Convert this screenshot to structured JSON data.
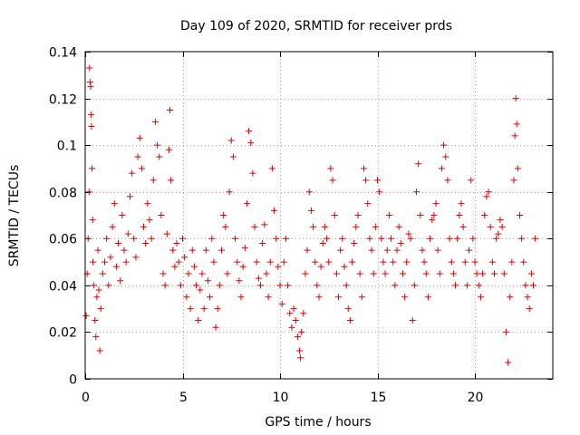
{
  "chart_data": {
    "type": "scatter",
    "title": "Day 109 of 2020, SRMTID for receiver prds",
    "xlabel": "GPS time / hours",
    "ylabel": "SRMTID / TECUs",
    "xlim": [
      0,
      24
    ],
    "ylim": [
      0,
      0.14
    ],
    "xticks": [
      0,
      5,
      10,
      15,
      20
    ],
    "xtick_labels": [
      "0",
      "5",
      "10",
      "15",
      "20"
    ],
    "yticks": [
      0,
      0.02,
      0.04,
      0.06,
      0.08,
      0.1,
      0.12,
      0.14
    ],
    "ytick_labels": [
      "0",
      "0.02",
      "0.04",
      "0.06",
      "0.08",
      "0.1",
      "0.12",
      "0.14"
    ],
    "grid": true,
    "marker": "+",
    "color": "#e00000",
    "series": [
      {
        "name": "SRMTID",
        "points": [
          [
            0.05,
            0.027
          ],
          [
            0.1,
            0.045
          ],
          [
            0.15,
            0.06
          ],
          [
            0.2,
            0.08
          ],
          [
            0.22,
            0.133
          ],
          [
            0.25,
            0.127
          ],
          [
            0.28,
            0.125
          ],
          [
            0.3,
            0.113
          ],
          [
            0.32,
            0.108
          ],
          [
            0.35,
            0.09
          ],
          [
            0.38,
            0.068
          ],
          [
            0.4,
            0.05
          ],
          [
            0.45,
            0.04
          ],
          [
            0.5,
            0.025
          ],
          [
            0.55,
            0.018
          ],
          [
            0.6,
            0.035
          ],
          [
            0.65,
            0.055
          ],
          [
            0.7,
            0.038
          ],
          [
            0.75,
            0.012
          ],
          [
            0.8,
            0.03
          ],
          [
            0.9,
            0.045
          ],
          [
            1.0,
            0.05
          ],
          [
            1.1,
            0.06
          ],
          [
            1.2,
            0.04
          ],
          [
            1.3,
            0.052
          ],
          [
            1.4,
            0.065
          ],
          [
            1.5,
            0.075
          ],
          [
            1.6,
            0.048
          ],
          [
            1.7,
            0.058
          ],
          [
            1.8,
            0.042
          ],
          [
            1.9,
            0.07
          ],
          [
            2.0,
            0.055
          ],
          [
            2.1,
            0.05
          ],
          [
            2.2,
            0.062
          ],
          [
            2.3,
            0.078
          ],
          [
            2.4,
            0.088
          ],
          [
            2.5,
            0.06
          ],
          [
            2.6,
            0.052
          ],
          [
            2.7,
            0.095
          ],
          [
            2.8,
            0.103
          ],
          [
            2.9,
            0.09
          ],
          [
            3.0,
            0.065
          ],
          [
            3.1,
            0.058
          ],
          [
            3.2,
            0.075
          ],
          [
            3.3,
            0.068
          ],
          [
            3.4,
            0.06
          ],
          [
            3.5,
            0.085
          ],
          [
            3.6,
            0.11
          ],
          [
            3.7,
            0.1
          ],
          [
            3.8,
            0.095
          ],
          [
            3.9,
            0.07
          ],
          [
            4.0,
            0.045
          ],
          [
            4.1,
            0.04
          ],
          [
            4.2,
            0.062
          ],
          [
            4.3,
            0.098
          ],
          [
            4.35,
            0.115
          ],
          [
            4.4,
            0.085
          ],
          [
            4.5,
            0.055
          ],
          [
            4.6,
            0.048
          ],
          [
            4.7,
            0.058
          ],
          [
            4.8,
            0.05
          ],
          [
            4.9,
            0.04
          ],
          [
            5.0,
            0.06
          ],
          [
            5.1,
            0.052
          ],
          [
            5.2,
            0.035
          ],
          [
            5.3,
            0.045
          ],
          [
            5.4,
            0.03
          ],
          [
            5.5,
            0.055
          ],
          [
            5.6,
            0.048
          ],
          [
            5.7,
            0.04
          ],
          [
            5.8,
            0.025
          ],
          [
            5.9,
            0.038
          ],
          [
            6.0,
            0.045
          ],
          [
            6.1,
            0.03
          ],
          [
            6.2,
            0.055
          ],
          [
            6.3,
            0.042
          ],
          [
            6.4,
            0.035
          ],
          [
            6.5,
            0.06
          ],
          [
            6.6,
            0.05
          ],
          [
            6.7,
            0.022
          ],
          [
            6.8,
            0.03
          ],
          [
            6.9,
            0.04
          ],
          [
            7.0,
            0.055
          ],
          [
            7.1,
            0.07
          ],
          [
            7.2,
            0.065
          ],
          [
            7.3,
            0.045
          ],
          [
            7.4,
            0.08
          ],
          [
            7.5,
            0.102
          ],
          [
            7.6,
            0.095
          ],
          [
            7.7,
            0.06
          ],
          [
            7.8,
            0.05
          ],
          [
            7.9,
            0.042
          ],
          [
            8.0,
            0.035
          ],
          [
            8.1,
            0.048
          ],
          [
            8.2,
            0.056
          ],
          [
            8.3,
            0.075
          ],
          [
            8.4,
            0.106
          ],
          [
            8.5,
            0.101
          ],
          [
            8.6,
            0.088
          ],
          [
            8.7,
            0.065
          ],
          [
            8.8,
            0.05
          ],
          [
            8.9,
            0.043
          ],
          [
            9.0,
            0.04
          ],
          [
            9.1,
            0.058
          ],
          [
            9.2,
            0.066
          ],
          [
            9.3,
            0.045
          ],
          [
            9.4,
            0.035
          ],
          [
            9.5,
            0.05
          ],
          [
            9.6,
            0.09
          ],
          [
            9.7,
            0.072
          ],
          [
            9.8,
            0.06
          ],
          [
            9.9,
            0.048
          ],
          [
            10.0,
            0.04
          ],
          [
            10.1,
            0.032
          ],
          [
            10.2,
            0.05
          ],
          [
            10.3,
            0.06
          ],
          [
            10.4,
            0.04
          ],
          [
            10.5,
            0.028
          ],
          [
            10.6,
            0.022
          ],
          [
            10.7,
            0.03
          ],
          [
            10.8,
            0.025
          ],
          [
            10.9,
            0.018
          ],
          [
            11.0,
            0.012
          ],
          [
            11.05,
            0.009
          ],
          [
            11.1,
            0.02
          ],
          [
            11.2,
            0.028
          ],
          [
            11.3,
            0.045
          ],
          [
            11.4,
            0.055
          ],
          [
            11.5,
            0.08
          ],
          [
            11.6,
            0.072
          ],
          [
            11.7,
            0.065
          ],
          [
            11.8,
            0.05
          ],
          [
            11.9,
            0.04
          ],
          [
            12.0,
            0.035
          ],
          [
            12.1,
            0.048
          ],
          [
            12.2,
            0.058
          ],
          [
            12.3,
            0.065
          ],
          [
            12.4,
            0.06
          ],
          [
            12.5,
            0.05
          ],
          [
            12.6,
            0.09
          ],
          [
            12.7,
            0.085
          ],
          [
            12.8,
            0.07
          ],
          [
            12.9,
            0.045
          ],
          [
            13.0,
            0.035
          ],
          [
            13.1,
            0.055
          ],
          [
            13.2,
            0.06
          ],
          [
            13.3,
            0.048
          ],
          [
            13.4,
            0.04
          ],
          [
            13.5,
            0.03
          ],
          [
            13.6,
            0.025
          ],
          [
            13.7,
            0.05
          ],
          [
            13.8,
            0.058
          ],
          [
            13.9,
            0.065
          ],
          [
            14.0,
            0.07
          ],
          [
            14.1,
            0.045
          ],
          [
            14.2,
            0.035
          ],
          [
            14.3,
            0.09
          ],
          [
            14.4,
            0.085
          ],
          [
            14.5,
            0.075
          ],
          [
            14.6,
            0.06
          ],
          [
            14.7,
            0.055
          ],
          [
            14.8,
            0.045
          ],
          [
            14.9,
            0.065
          ],
          [
            15.0,
            0.085
          ],
          [
            15.1,
            0.08
          ],
          [
            15.2,
            0.06
          ],
          [
            15.3,
            0.05
          ],
          [
            15.4,
            0.045
          ],
          [
            15.5,
            0.055
          ],
          [
            15.6,
            0.07
          ],
          [
            15.7,
            0.06
          ],
          [
            15.8,
            0.05
          ],
          [
            15.9,
            0.04
          ],
          [
            16.0,
            0.055
          ],
          [
            16.1,
            0.065
          ],
          [
            16.2,
            0.058
          ],
          [
            16.3,
            0.045
          ],
          [
            16.4,
            0.035
          ],
          [
            16.5,
            0.05
          ],
          [
            16.6,
            0.062
          ],
          [
            16.7,
            0.06
          ],
          [
            16.8,
            0.025
          ],
          [
            16.9,
            0.04
          ],
          [
            17.0,
            0.08
          ],
          [
            17.1,
            0.092
          ],
          [
            17.2,
            0.07
          ],
          [
            17.3,
            0.055
          ],
          [
            17.4,
            0.05
          ],
          [
            17.5,
            0.045
          ],
          [
            17.6,
            0.035
          ],
          [
            17.7,
            0.06
          ],
          [
            17.8,
            0.068
          ],
          [
            17.9,
            0.07
          ],
          [
            18.0,
            0.075
          ],
          [
            18.1,
            0.055
          ],
          [
            18.2,
            0.045
          ],
          [
            18.3,
            0.09
          ],
          [
            18.4,
            0.1
          ],
          [
            18.5,
            0.095
          ],
          [
            18.6,
            0.085
          ],
          [
            18.7,
            0.06
          ],
          [
            18.8,
            0.05
          ],
          [
            18.9,
            0.045
          ],
          [
            19.0,
            0.04
          ],
          [
            19.1,
            0.06
          ],
          [
            19.2,
            0.07
          ],
          [
            19.3,
            0.075
          ],
          [
            19.4,
            0.065
          ],
          [
            19.5,
            0.05
          ],
          [
            19.6,
            0.04
          ],
          [
            19.7,
            0.055
          ],
          [
            19.8,
            0.085
          ],
          [
            19.9,
            0.06
          ],
          [
            20.0,
            0.05
          ],
          [
            20.1,
            0.045
          ],
          [
            20.2,
            0.04
          ],
          [
            20.3,
            0.035
          ],
          [
            20.4,
            0.045
          ],
          [
            20.5,
            0.07
          ],
          [
            20.6,
            0.078
          ],
          [
            20.7,
            0.08
          ],
          [
            20.8,
            0.065
          ],
          [
            20.9,
            0.05
          ],
          [
            21.0,
            0.045
          ],
          [
            21.1,
            0.06
          ],
          [
            21.2,
            0.062
          ],
          [
            21.3,
            0.068
          ],
          [
            21.4,
            0.065
          ],
          [
            21.5,
            0.045
          ],
          [
            21.6,
            0.02
          ],
          [
            21.7,
            0.007
          ],
          [
            21.8,
            0.035
          ],
          [
            21.9,
            0.05
          ],
          [
            22.0,
            0.085
          ],
          [
            22.05,
            0.104
          ],
          [
            22.1,
            0.12
          ],
          [
            22.15,
            0.109
          ],
          [
            22.2,
            0.09
          ],
          [
            22.3,
            0.07
          ],
          [
            22.4,
            0.06
          ],
          [
            22.5,
            0.05
          ],
          [
            22.6,
            0.04
          ],
          [
            22.7,
            0.035
          ],
          [
            22.8,
            0.03
          ],
          [
            22.9,
            0.045
          ],
          [
            23.0,
            0.04
          ],
          [
            23.1,
            0.06
          ]
        ]
      }
    ]
  }
}
